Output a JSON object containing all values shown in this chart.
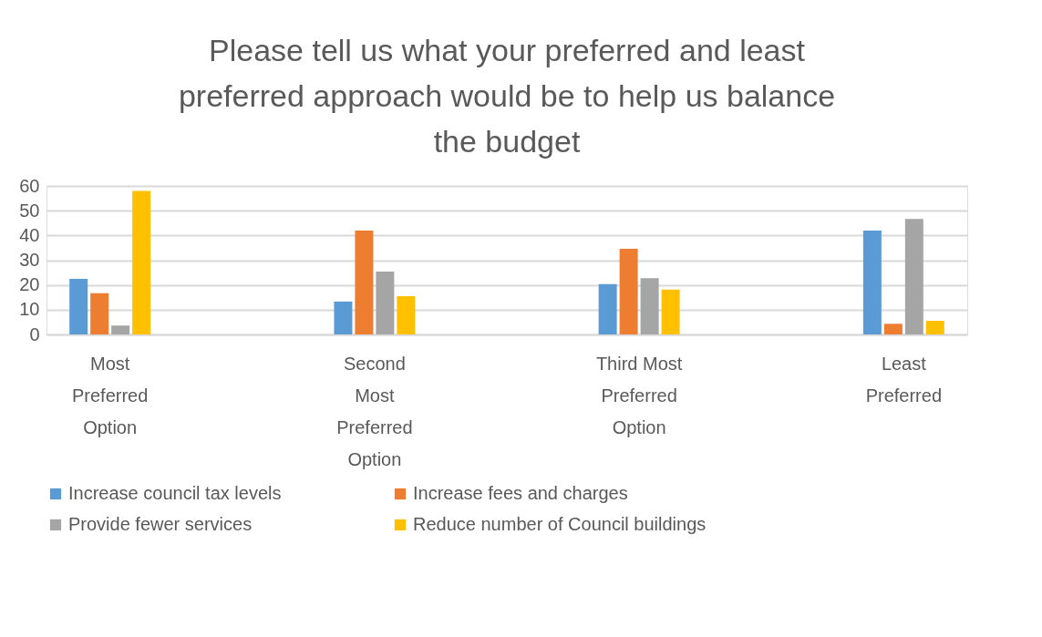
{
  "chart_data": {
    "type": "bar",
    "title": "Please tell us what your preferred and least preferred approach would be to help us balance the budget",
    "categories": [
      "Most Preferred Option",
      "Second Most Preferred Option",
      "Third Most Preferred Option",
      "Least Preferred"
    ],
    "series": [
      {
        "name": "Increase council tax levels",
        "color": "#5b9bd5",
        "values": [
          22.5,
          13.3,
          20.3,
          42.0
        ]
      },
      {
        "name": "Increase fees and charges",
        "color": "#ed7d31",
        "values": [
          16.7,
          42.0,
          34.6,
          4.3
        ]
      },
      {
        "name": "Provide fewer services",
        "color": "#a5a5a5",
        "values": [
          3.6,
          25.4,
          22.7,
          46.7
        ]
      },
      {
        "name": "Reduce number of Council buildings",
        "color": "#ffc000",
        "values": [
          58.0,
          15.5,
          18.1,
          5.5
        ]
      }
    ],
    "ylim": [
      0,
      60
    ],
    "yticks": [
      0,
      10,
      20,
      30,
      40,
      50,
      60
    ],
    "grid": "y",
    "legend": "bottom"
  }
}
